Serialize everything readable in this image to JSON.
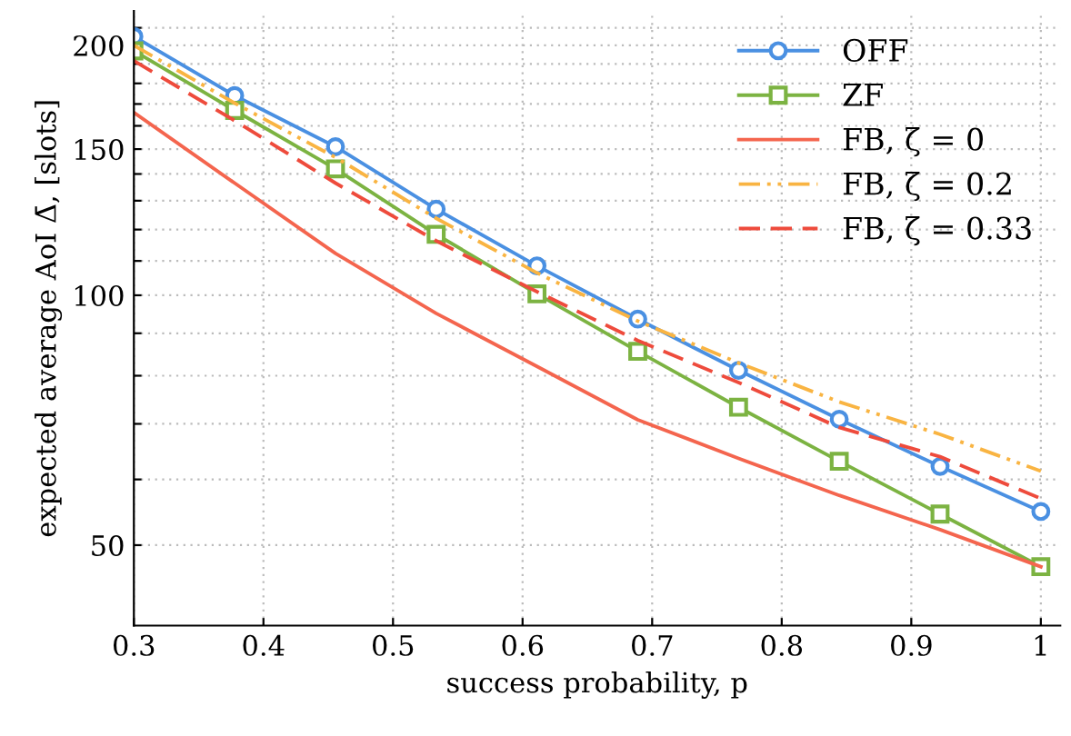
{
  "chart_data": {
    "type": "line",
    "xlabel": "success probability, p",
    "ylabel": "expected average AoI Δ̄, [slots]",
    "x": [
      0.3,
      0.3778,
      0.4556,
      0.5333,
      0.6111,
      0.6889,
      0.7667,
      0.8444,
      0.9222,
      1.0
    ],
    "series": [
      {
        "name": "OFF",
        "color": "#4a90e2",
        "marker": "circle",
        "line_style": "solid",
        "values": [
          205,
          174,
          151,
          127,
          108.5,
          93.6,
          81.2,
          70.9,
          62.2,
          54.9
        ]
      },
      {
        "name": "ZF",
        "color": "#7cb342",
        "marker": "square",
        "line_style": "solid",
        "values": [
          197,
          167,
          142,
          118.4,
          100.4,
          85.6,
          73.3,
          63.1,
          54.5,
          47.1
        ]
      },
      {
        "name": "FB, ζ = 0",
        "color": "#f4654e",
        "marker": "none",
        "line_style": "solid",
        "values": [
          166,
          136.5,
          112.3,
          95.1,
          82.1,
          70.8,
          63.6,
          57.4,
          52.2,
          47.1
        ]
      },
      {
        "name": "FB, ζ = 0.2",
        "color": "#f9b442",
        "marker": "none",
        "line_style": "dotted",
        "values": [
          200,
          170.4,
          146.6,
          123.8,
          106.4,
          93.1,
          82.9,
          74.4,
          68,
          61.4
        ]
      },
      {
        "name": "FB, ζ = 0.33",
        "color": "#ee4b3c",
        "marker": "none",
        "line_style": "dashed",
        "values": [
          191.6,
          162.3,
          136.5,
          116.3,
          101,
          88.2,
          78.5,
          69.3,
          63.9,
          56.9
        ]
      }
    ],
    "log": "y",
    "xlim": [
      0.3,
      1.015
    ],
    "ylim": [
      40,
      220
    ],
    "xticks": [
      0.3,
      0.4,
      0.5,
      0.6,
      0.7,
      0.8,
      0.9,
      1
    ],
    "yticks": [
      50,
      {
        "value": 60,
        "label": null
      },
      {
        "value": 70,
        "label": null
      },
      {
        "value": 80,
        "label": null
      },
      {
        "value": 90,
        "label": null
      },
      100,
      {
        "value": 110,
        "label": null
      },
      {
        "value": 120,
        "label": null
      },
      {
        "value": 130,
        "label": null
      },
      {
        "value": 140,
        "label": null
      },
      150,
      {
        "value": 160,
        "label": null
      },
      {
        "value": 170,
        "label": null
      },
      {
        "value": 180,
        "label": null
      },
      {
        "value": 190,
        "label": null
      },
      200,
      {
        "value": 210,
        "label": null
      }
    ],
    "grid": true,
    "legend": "top right"
  }
}
